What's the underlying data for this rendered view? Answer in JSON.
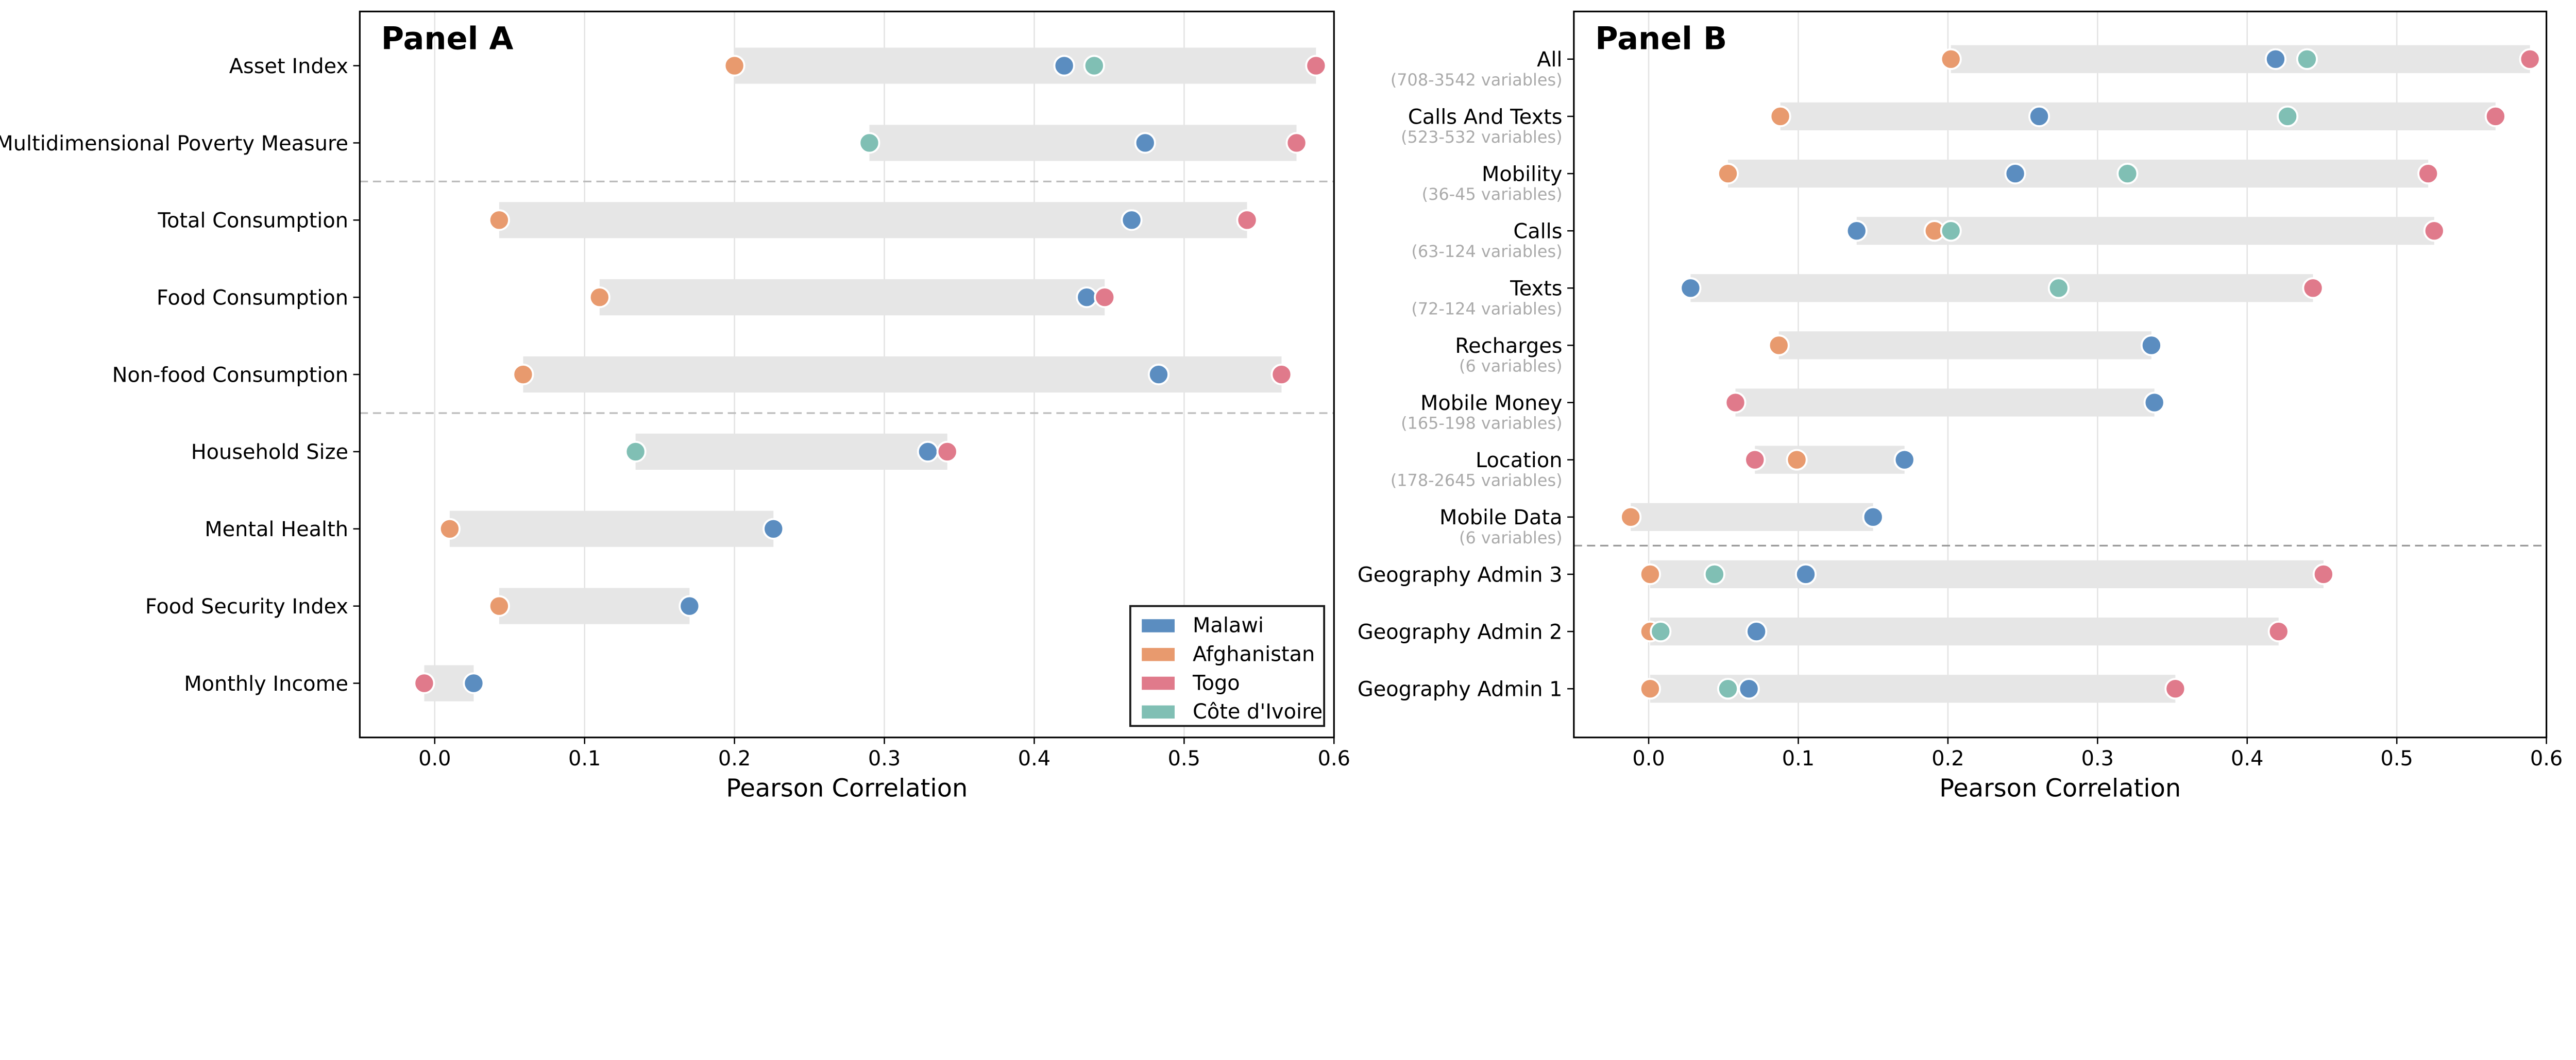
{
  "colors": {
    "Malawi": "#5B8DC0",
    "Afghanistan": "#E89A6E",
    "Togo": "#E07A8B",
    "Côte d'Ivoire": "#80BFB4",
    "bar": "#E6E6E6"
  },
  "chart_data": [
    {
      "type": "dumbbell",
      "title": "Panel A",
      "xlabel": "Pearson Correlation",
      "xlim": [
        -0.05,
        0.6
      ],
      "xticks": [
        "0.0",
        "0.1",
        "0.2",
        "0.3",
        "0.4",
        "0.5",
        "0.6"
      ],
      "grid": true,
      "legend_position": "bottom-right",
      "legend": [
        "Malawi",
        "Afghanistan",
        "Togo",
        "Côte d'Ivoire"
      ],
      "categories": [
        "Asset Index",
        "Multidimensional Poverty Measure",
        "Total Consumption",
        "Food Consumption",
        "Non-food Consumption",
        "Household Size",
        "Mental Health",
        "Food Security Index",
        "Monthly Income"
      ],
      "subtitles": [],
      "dividers_after": [
        1,
        4
      ],
      "series": [
        {
          "name": "Afghanistan",
          "values": [
            0.2,
            null,
            0.043,
            0.11,
            0.059,
            null,
            0.01,
            0.043,
            null
          ]
        },
        {
          "name": "Malawi",
          "values": [
            0.42,
            0.474,
            0.465,
            0.435,
            0.483,
            0.329,
            0.226,
            0.17,
            0.026
          ]
        },
        {
          "name": "Togo",
          "values": [
            0.588,
            0.575,
            0.542,
            0.447,
            0.565,
            0.342,
            null,
            null,
            -0.007
          ]
        },
        {
          "name": "Côte d'Ivoire",
          "values": [
            0.44,
            0.29,
            null,
            null,
            null,
            0.134,
            null,
            null,
            null
          ]
        }
      ]
    },
    {
      "type": "dumbbell",
      "title": "Panel B",
      "xlabel": "Pearson Correlation",
      "xlim": [
        -0.05,
        0.6
      ],
      "xticks": [
        "0.0",
        "0.1",
        "0.2",
        "0.3",
        "0.4",
        "0.5",
        "0.6"
      ],
      "grid": true,
      "categories": [
        "All",
        "Calls And Texts",
        "Mobility",
        "Calls",
        "Texts",
        "Recharges",
        "Mobile Money",
        "Location",
        "Mobile Data",
        "Geography Admin 3",
        "Geography Admin 2",
        "Geography Admin 1"
      ],
      "subtitles": [
        "(708-3542 variables)",
        "(523-532 variables)",
        "(36-45 variables)",
        "(63-124 variables)",
        "(72-124 variables)",
        "(6 variables)",
        "(165-198 variables)",
        "(178-2645 variables)",
        "(6 variables)",
        "",
        "",
        ""
      ],
      "dividers_after": [
        8
      ],
      "series": [
        {
          "name": "Afghanistan",
          "values": [
            0.202,
            0.088,
            0.053,
            0.191,
            null,
            0.087,
            null,
            0.099,
            -0.012,
            0.001,
            0.001,
            0.001
          ]
        },
        {
          "name": "Malawi",
          "values": [
            0.419,
            0.261,
            0.245,
            0.139,
            0.028,
            0.336,
            0.338,
            0.171,
            0.15,
            0.105,
            0.072,
            0.067
          ]
        },
        {
          "name": "Togo",
          "values": [
            0.589,
            0.566,
            0.521,
            0.525,
            0.444,
            null,
            0.058,
            0.071,
            null,
            0.451,
            0.421,
            0.352
          ]
        },
        {
          "name": "Côte d'Ivoire",
          "values": [
            0.44,
            0.427,
            0.32,
            0.202,
            0.274,
            null,
            null,
            null,
            null,
            0.044,
            0.008,
            0.053
          ]
        }
      ]
    }
  ]
}
